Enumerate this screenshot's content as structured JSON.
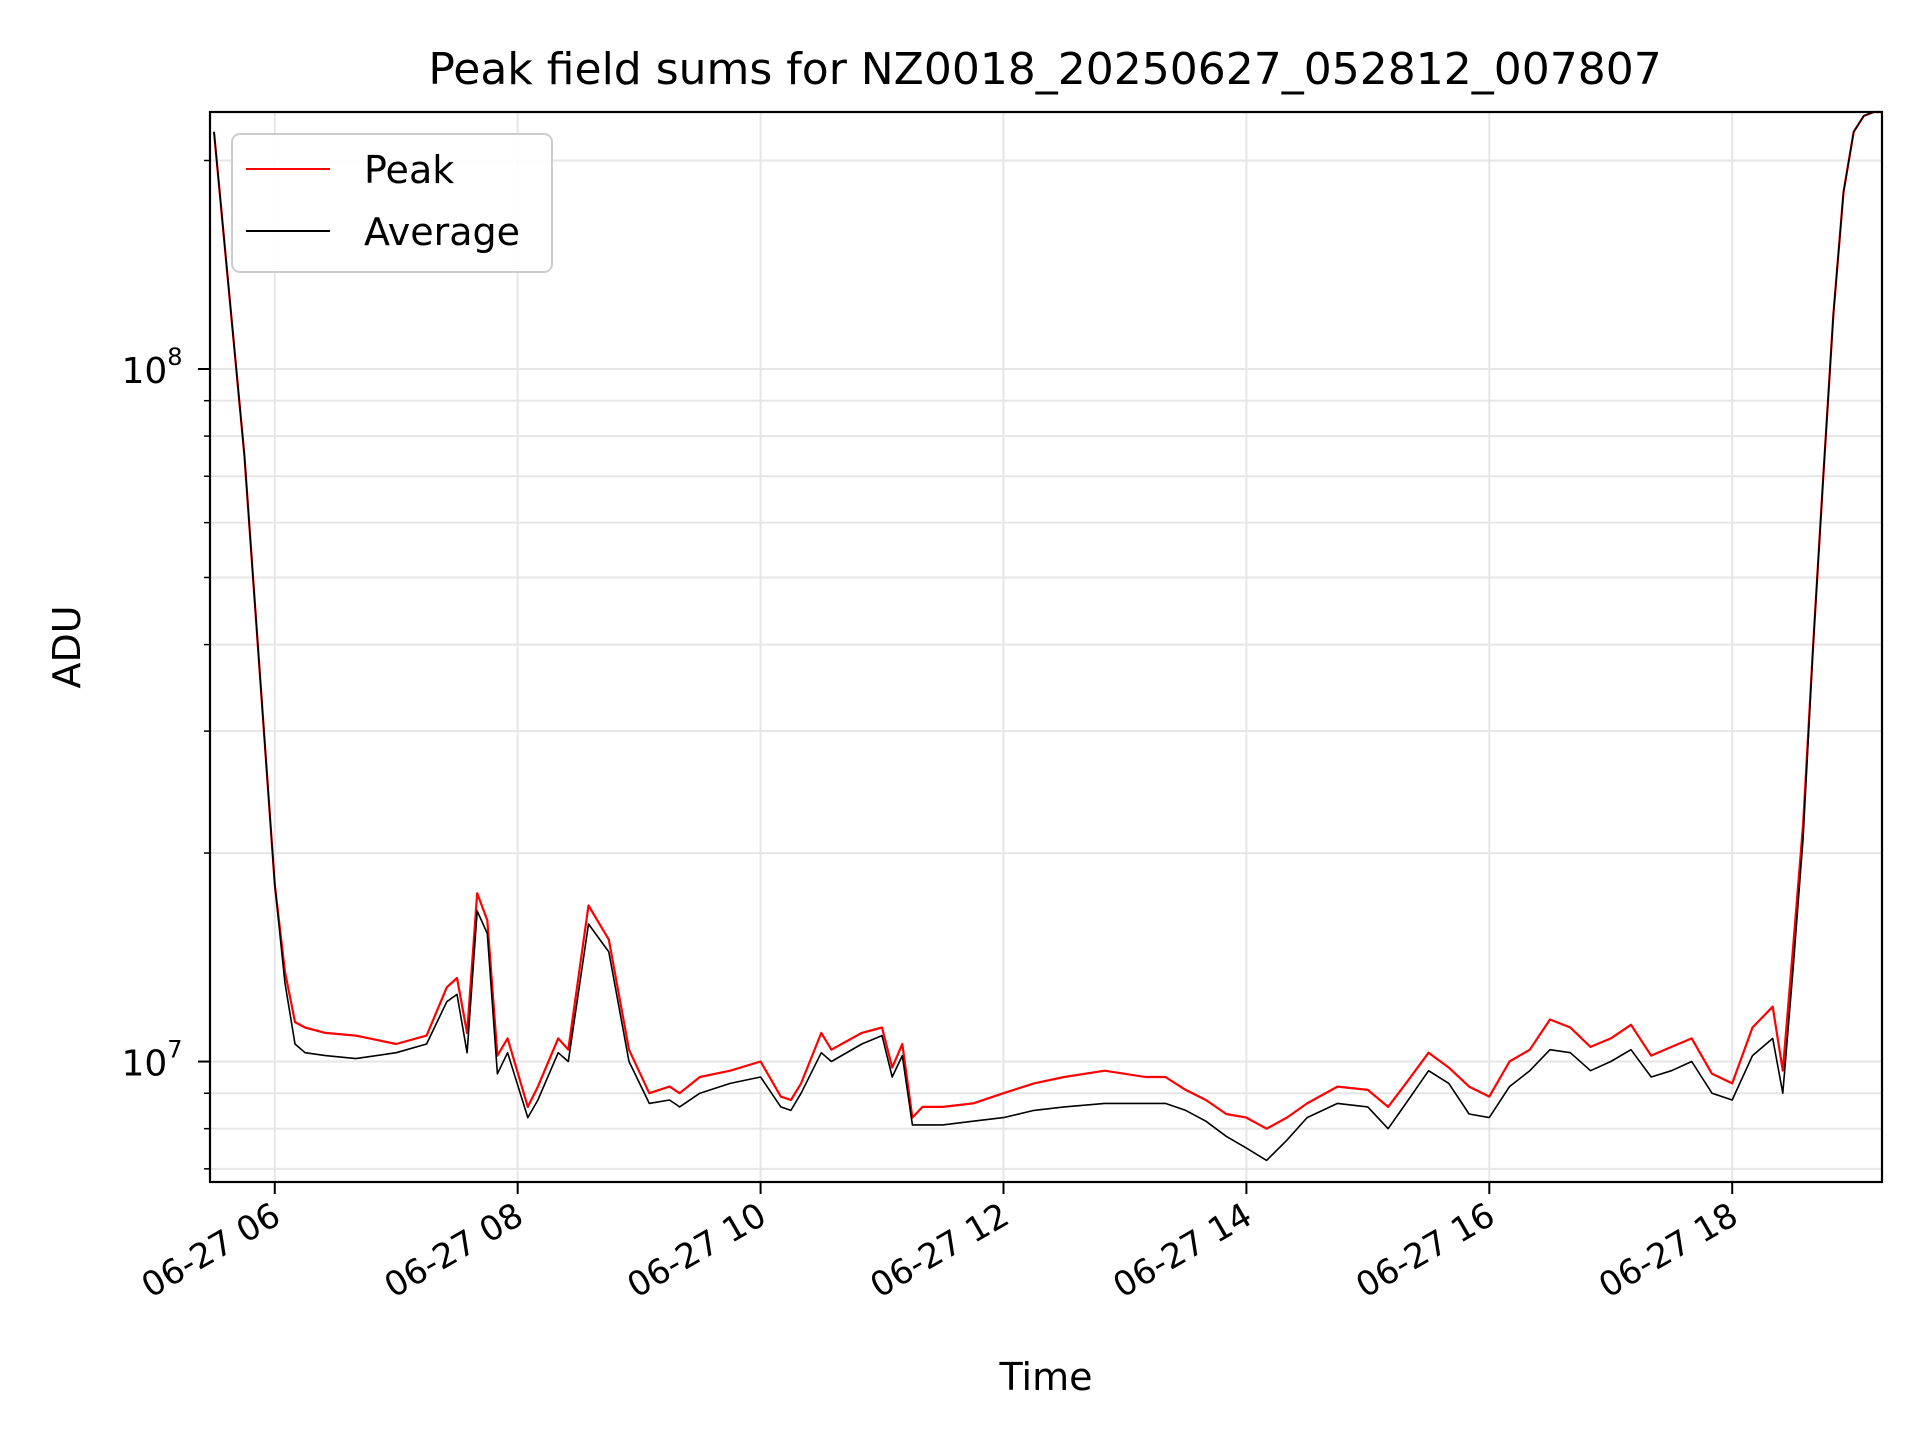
{
  "chart_data": {
    "type": "line",
    "title": "Peak field sums for NZ0018_20250627_052812_007807",
    "xlabel": "Time",
    "ylabel": "ADU",
    "yscale": "log",
    "xlim": [
      "06-27 05:28",
      "06-27 19:14"
    ],
    "ylim": [
      6700000,
      235000000
    ],
    "xticks": [
      "06-27 06",
      "06-27 08",
      "06-27 10",
      "06-27 12",
      "06-27 14",
      "06-27 16",
      "06-27 18"
    ],
    "yticks": [
      {
        "label": "10",
        "exp": "7",
        "value": 10000000
      },
      {
        "label": "10",
        "exp": "8",
        "value": 100000000
      }
    ],
    "grid": true,
    "legend": {
      "position": "top-left"
    },
    "series": [
      {
        "name": "Peak",
        "color": "#ff0000",
        "x": [
          "06-27 05:30",
          "06-27 05:45",
          "06-27 06:00",
          "06-27 06:05",
          "06-27 06:10",
          "06-27 06:15",
          "06-27 06:25",
          "06-27 06:40",
          "06-27 07:00",
          "06-27 07:15",
          "06-27 07:25",
          "06-27 07:30",
          "06-27 07:35",
          "06-27 07:40",
          "06-27 07:45",
          "06-27 07:50",
          "06-27 07:55",
          "06-27 08:05",
          "06-27 08:10",
          "06-27 08:20",
          "06-27 08:25",
          "06-27 08:35",
          "06-27 08:45",
          "06-27 08:55",
          "06-27 09:05",
          "06-27 09:15",
          "06-27 09:20",
          "06-27 09:30",
          "06-27 09:45",
          "06-27 10:00",
          "06-27 10:10",
          "06-27 10:15",
          "06-27 10:20",
          "06-27 10:30",
          "06-27 10:35",
          "06-27 10:50",
          "06-27 11:00",
          "06-27 11:05",
          "06-27 11:10",
          "06-27 11:15",
          "06-27 11:20",
          "06-27 11:30",
          "06-27 11:45",
          "06-27 12:00",
          "06-27 12:15",
          "06-27 12:30",
          "06-27 12:50",
          "06-27 13:10",
          "06-27 13:20",
          "06-27 13:30",
          "06-27 13:40",
          "06-27 13:50",
          "06-27 14:00",
          "06-27 14:10",
          "06-27 14:20",
          "06-27 14:30",
          "06-27 14:45",
          "06-27 15:00",
          "06-27 15:10",
          "06-27 15:20",
          "06-27 15:30",
          "06-27 15:40",
          "06-27 15:50",
          "06-27 16:00",
          "06-27 16:10",
          "06-27 16:20",
          "06-27 16:30",
          "06-27 16:40",
          "06-27 16:50",
          "06-27 17:00",
          "06-27 17:10",
          "06-27 17:20",
          "06-27 17:30",
          "06-27 17:40",
          "06-27 17:50",
          "06-27 18:00",
          "06-27 18:10",
          "06-27 18:20",
          "06-27 18:25",
          "06-27 18:30",
          "06-27 18:35",
          "06-27 18:40",
          "06-27 18:45",
          "06-27 18:50",
          "06-27 18:55",
          "06-27 19:00",
          "06-27 19:05",
          "06-27 19:10",
          "06-27 19:14"
        ],
        "y": [
          220000000,
          75000000,
          18000000,
          13500000,
          11400000,
          11200000,
          11000000,
          10900000,
          10600000,
          10900000,
          12800000,
          13200000,
          11000000,
          17500000,
          16000000,
          10200000,
          10800000,
          8600000,
          9200000,
          10800000,
          10400000,
          16800000,
          15000000,
          10400000,
          9000000,
          9200000,
          9000000,
          9500000,
          9700000,
          10000000,
          8900000,
          8800000,
          9300000,
          11000000,
          10400000,
          11000000,
          11200000,
          9800000,
          10600000,
          8300000,
          8600000,
          8600000,
          8700000,
          9000000,
          9300000,
          9500000,
          9700000,
          9500000,
          9500000,
          9100000,
          8800000,
          8400000,
          8300000,
          8000000,
          8300000,
          8700000,
          9200000,
          9100000,
          8600000,
          9400000,
          10300000,
          9800000,
          9200000,
          8900000,
          10000000,
          10400000,
          11500000,
          11200000,
          10500000,
          10800000,
          11300000,
          10200000,
          10500000,
          10800000,
          9600000,
          9300000,
          11200000,
          12000000,
          9700000,
          14500000,
          22000000,
          40000000,
          70000000,
          120000000,
          180000000,
          220000000,
          232000000,
          235000000,
          235000000
        ]
      },
      {
        "name": "Average",
        "color": "#000000",
        "x": [
          "06-27 05:30",
          "06-27 05:45",
          "06-27 06:00",
          "06-27 06:05",
          "06-27 06:10",
          "06-27 06:15",
          "06-27 06:25",
          "06-27 06:40",
          "06-27 07:00",
          "06-27 07:15",
          "06-27 07:25",
          "06-27 07:30",
          "06-27 07:35",
          "06-27 07:40",
          "06-27 07:45",
          "06-27 07:50",
          "06-27 07:55",
          "06-27 08:05",
          "06-27 08:10",
          "06-27 08:20",
          "06-27 08:25",
          "06-27 08:35",
          "06-27 08:45",
          "06-27 08:55",
          "06-27 09:05",
          "06-27 09:15",
          "06-27 09:20",
          "06-27 09:30",
          "06-27 09:45",
          "06-27 10:00",
          "06-27 10:10",
          "06-27 10:15",
          "06-27 10:20",
          "06-27 10:30",
          "06-27 10:35",
          "06-27 10:50",
          "06-27 11:00",
          "06-27 11:05",
          "06-27 11:10",
          "06-27 11:15",
          "06-27 11:20",
          "06-27 11:30",
          "06-27 11:45",
          "06-27 12:00",
          "06-27 12:15",
          "06-27 12:30",
          "06-27 12:50",
          "06-27 13:10",
          "06-27 13:20",
          "06-27 13:30",
          "06-27 13:40",
          "06-27 13:50",
          "06-27 14:00",
          "06-27 14:10",
          "06-27 14:20",
          "06-27 14:30",
          "06-27 14:45",
          "06-27 15:00",
          "06-27 15:10",
          "06-27 15:20",
          "06-27 15:30",
          "06-27 15:40",
          "06-27 15:50",
          "06-27 16:00",
          "06-27 16:10",
          "06-27 16:20",
          "06-27 16:30",
          "06-27 16:40",
          "06-27 16:50",
          "06-27 17:00",
          "06-27 17:10",
          "06-27 17:20",
          "06-27 17:30",
          "06-27 17:40",
          "06-27 17:50",
          "06-27 18:00",
          "06-27 18:10",
          "06-27 18:20",
          "06-27 18:25",
          "06-27 18:30",
          "06-27 18:35",
          "06-27 18:40",
          "06-27 18:45",
          "06-27 18:50",
          "06-27 18:55",
          "06-27 19:00",
          "06-27 19:05",
          "06-27 19:10",
          "06-27 19:14"
        ],
        "y": [
          220000000,
          75000000,
          18000000,
          13000000,
          10600000,
          10300000,
          10200000,
          10100000,
          10300000,
          10600000,
          12200000,
          12500000,
          10300000,
          16500000,
          15300000,
          9600000,
          10300000,
          8300000,
          8800000,
          10300000,
          10000000,
          15800000,
          14400000,
          10000000,
          8700000,
          8800000,
          8600000,
          9000000,
          9300000,
          9500000,
          8600000,
          8500000,
          9000000,
          10300000,
          10000000,
          10600000,
          10900000,
          9500000,
          10200000,
          8100000,
          8100000,
          8100000,
          8200000,
          8300000,
          8500000,
          8600000,
          8700000,
          8700000,
          8700000,
          8500000,
          8200000,
          7800000,
          7500000,
          7200000,
          7700000,
          8300000,
          8700000,
          8600000,
          8000000,
          8800000,
          9700000,
          9300000,
          8400000,
          8300000,
          9200000,
          9700000,
          10400000,
          10300000,
          9700000,
          10000000,
          10400000,
          9500000,
          9700000,
          10000000,
          9000000,
          8800000,
          10200000,
          10800000,
          9000000,
          13500000,
          21000000,
          40000000,
          70000000,
          120000000,
          180000000,
          220000000,
          232000000,
          235000000,
          235000000
        ]
      }
    ]
  }
}
